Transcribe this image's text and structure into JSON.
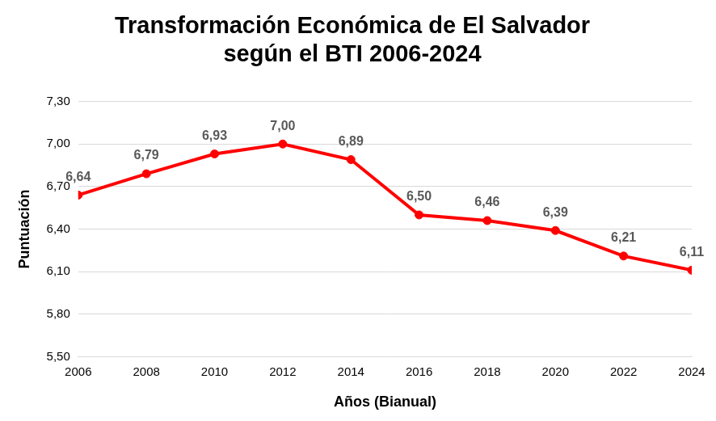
{
  "chart_data": {
    "type": "line",
    "title": [
      "Transformación Económica de El Salvador",
      "según el BTI 2006-2024"
    ],
    "x_label": "Años (Bianual)",
    "y_label": "Puntuación",
    "categories": [
      "2006",
      "2008",
      "2010",
      "2012",
      "2014",
      "2016",
      "2018",
      "2020",
      "2022",
      "2024"
    ],
    "values": [
      6.64,
      6.79,
      6.93,
      7.0,
      6.89,
      6.5,
      6.46,
      6.39,
      6.21,
      6.11
    ],
    "value_labels": [
      "6,64",
      "6,79",
      "6,93",
      "7,00",
      "6,89",
      "6,50",
      "6,46",
      "6,39",
      "6,21",
      "6,11"
    ],
    "color": "#ff0000",
    "marker": "circle",
    "ylim": [
      5.5,
      7.3
    ],
    "yticks": [
      {
        "value": 5.5,
        "label": "5,50"
      },
      {
        "value": 5.8,
        "label": "5,80"
      },
      {
        "value": 6.1,
        "label": "6,10"
      },
      {
        "value": 6.4,
        "label": "6,40"
      },
      {
        "value": 6.7,
        "label": "6,70"
      },
      {
        "value": 7.0,
        "label": "7,00"
      },
      {
        "value": 7.3,
        "label": "7,30"
      }
    ],
    "grid": true,
    "data_labels": true
  }
}
